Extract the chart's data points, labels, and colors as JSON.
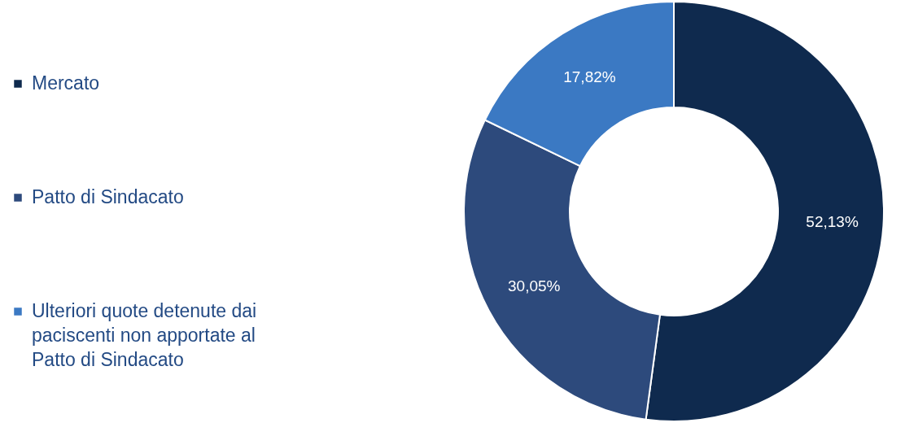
{
  "chart_data": {
    "type": "donut",
    "categories": [
      "Mercato",
      "Patto di Sindacato",
      "Ulteriori quote detenute dai paciscenti non apportate al Patto di Sindacato"
    ],
    "values": [
      52.13,
      30.05,
      17.82
    ],
    "colors": [
      "#0f2a4e",
      "#2d4a7c",
      "#3b79c3"
    ],
    "value_labels": [
      "52,13%",
      "30,05%",
      "17,82%"
    ],
    "legend": "left"
  }
}
